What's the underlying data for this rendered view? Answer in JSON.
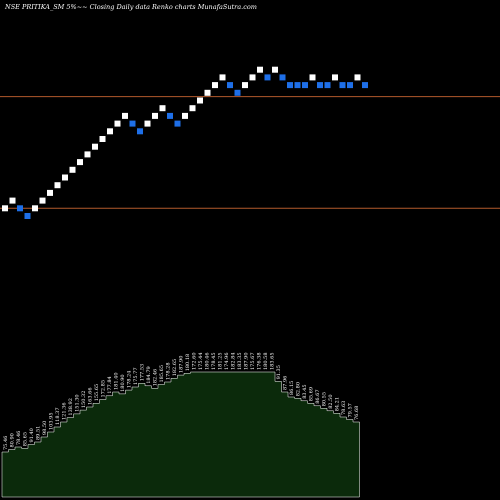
{
  "chart_data": {
    "type": "renko",
    "title": "NSE PRITIKA_SM 5%~~  Closing Daily data  Renko  charts MunafaSutra.com",
    "xlabel": "",
    "ylabel": "",
    "grid": false,
    "legend": "none",
    "colors": {
      "background": "#000000",
      "up_brick": "#ffffff",
      "down_brick": "#1e6fe8",
      "reference_line": "#b25a2c",
      "volume_fill": "#0b2a0b",
      "volume_stroke": "#ffffff",
      "text": "#ffffff"
    },
    "reference_levels": [
      1,
      15.5
    ],
    "bricks": [
      {
        "level": 1,
        "dir": "up"
      },
      {
        "level": 2,
        "dir": "up"
      },
      {
        "level": 1,
        "dir": "down"
      },
      {
        "level": 0,
        "dir": "down"
      },
      {
        "level": 1,
        "dir": "up"
      },
      {
        "level": 2,
        "dir": "up"
      },
      {
        "level": 3,
        "dir": "up"
      },
      {
        "level": 4,
        "dir": "up"
      },
      {
        "level": 5,
        "dir": "up"
      },
      {
        "level": 6,
        "dir": "up"
      },
      {
        "level": 7,
        "dir": "up"
      },
      {
        "level": 8,
        "dir": "up"
      },
      {
        "level": 9,
        "dir": "up"
      },
      {
        "level": 10,
        "dir": "up"
      },
      {
        "level": 11,
        "dir": "up"
      },
      {
        "level": 12,
        "dir": "up"
      },
      {
        "level": 13,
        "dir": "up"
      },
      {
        "level": 12,
        "dir": "down"
      },
      {
        "level": 11,
        "dir": "down"
      },
      {
        "level": 12,
        "dir": "up"
      },
      {
        "level": 13,
        "dir": "up"
      },
      {
        "level": 14,
        "dir": "up"
      },
      {
        "level": 13,
        "dir": "down"
      },
      {
        "level": 12,
        "dir": "down"
      },
      {
        "level": 13,
        "dir": "up"
      },
      {
        "level": 14,
        "dir": "up"
      },
      {
        "level": 15,
        "dir": "up"
      },
      {
        "level": 16,
        "dir": "up"
      },
      {
        "level": 17,
        "dir": "up"
      },
      {
        "level": 18,
        "dir": "up"
      },
      {
        "level": 17,
        "dir": "down"
      },
      {
        "level": 16,
        "dir": "down"
      },
      {
        "level": 17,
        "dir": "up"
      },
      {
        "level": 18,
        "dir": "up"
      },
      {
        "level": 19,
        "dir": "up"
      },
      {
        "level": 18,
        "dir": "down"
      },
      {
        "level": 19,
        "dir": "up"
      },
      {
        "level": 18,
        "dir": "down"
      },
      {
        "level": 17,
        "dir": "down"
      },
      {
        "level": 17,
        "dir": "down"
      },
      {
        "level": 17,
        "dir": "down"
      },
      {
        "level": 18,
        "dir": "up"
      },
      {
        "level": 17,
        "dir": "down"
      },
      {
        "level": 17,
        "dir": "down"
      },
      {
        "level": 18,
        "dir": "up"
      },
      {
        "level": 17,
        "dir": "down"
      },
      {
        "level": 17,
        "dir": "down"
      },
      {
        "level": 18,
        "dir": "up"
      },
      {
        "level": 17,
        "dir": "down"
      }
    ],
    "volume": {
      "values": [
        72,
        76,
        80,
        78,
        84,
        88,
        96,
        104,
        112,
        120,
        127,
        133,
        139,
        144,
        150,
        156,
        162,
        168,
        165,
        171,
        176,
        182,
        178,
        174,
        180,
        184,
        190,
        195,
        198,
        200,
        200,
        200,
        200,
        200,
        200,
        200,
        200,
        200,
        200,
        200,
        200,
        200,
        185,
        168,
        160,
        158,
        154,
        150,
        146,
        142,
        138,
        134,
        128,
        124,
        120
      ],
      "labels": [
        "75.46",
        "80.90",
        "78.46",
        "85.65",
        "91.40",
        "89.51",
        "98.50",
        "103.95",
        "118.37",
        "121.36",
        "138.92",
        "151.30",
        "150.32",
        "163.66",
        "155.65",
        "172.85",
        "177.84",
        "181.40",
        "180.90",
        "178.24",
        "175.77",
        "177.53",
        "184.79",
        "182.46",
        "185.65",
        "178.28",
        "182.65",
        "187.90",
        "180.18",
        "172.60",
        "175.44",
        "180.46",
        "178.45",
        "181.25",
        "174.96",
        "182.84",
        "183.35",
        "187.90",
        "175.67",
        "176.38",
        "180.58",
        "183.65",
        "91.35",
        "87.96",
        "86.15",
        "82.80",
        "83.45",
        "85.69",
        "86.67",
        "80.55",
        "82.50",
        "84.21",
        "78.63",
        "79.57",
        "76.68"
      ]
    }
  }
}
